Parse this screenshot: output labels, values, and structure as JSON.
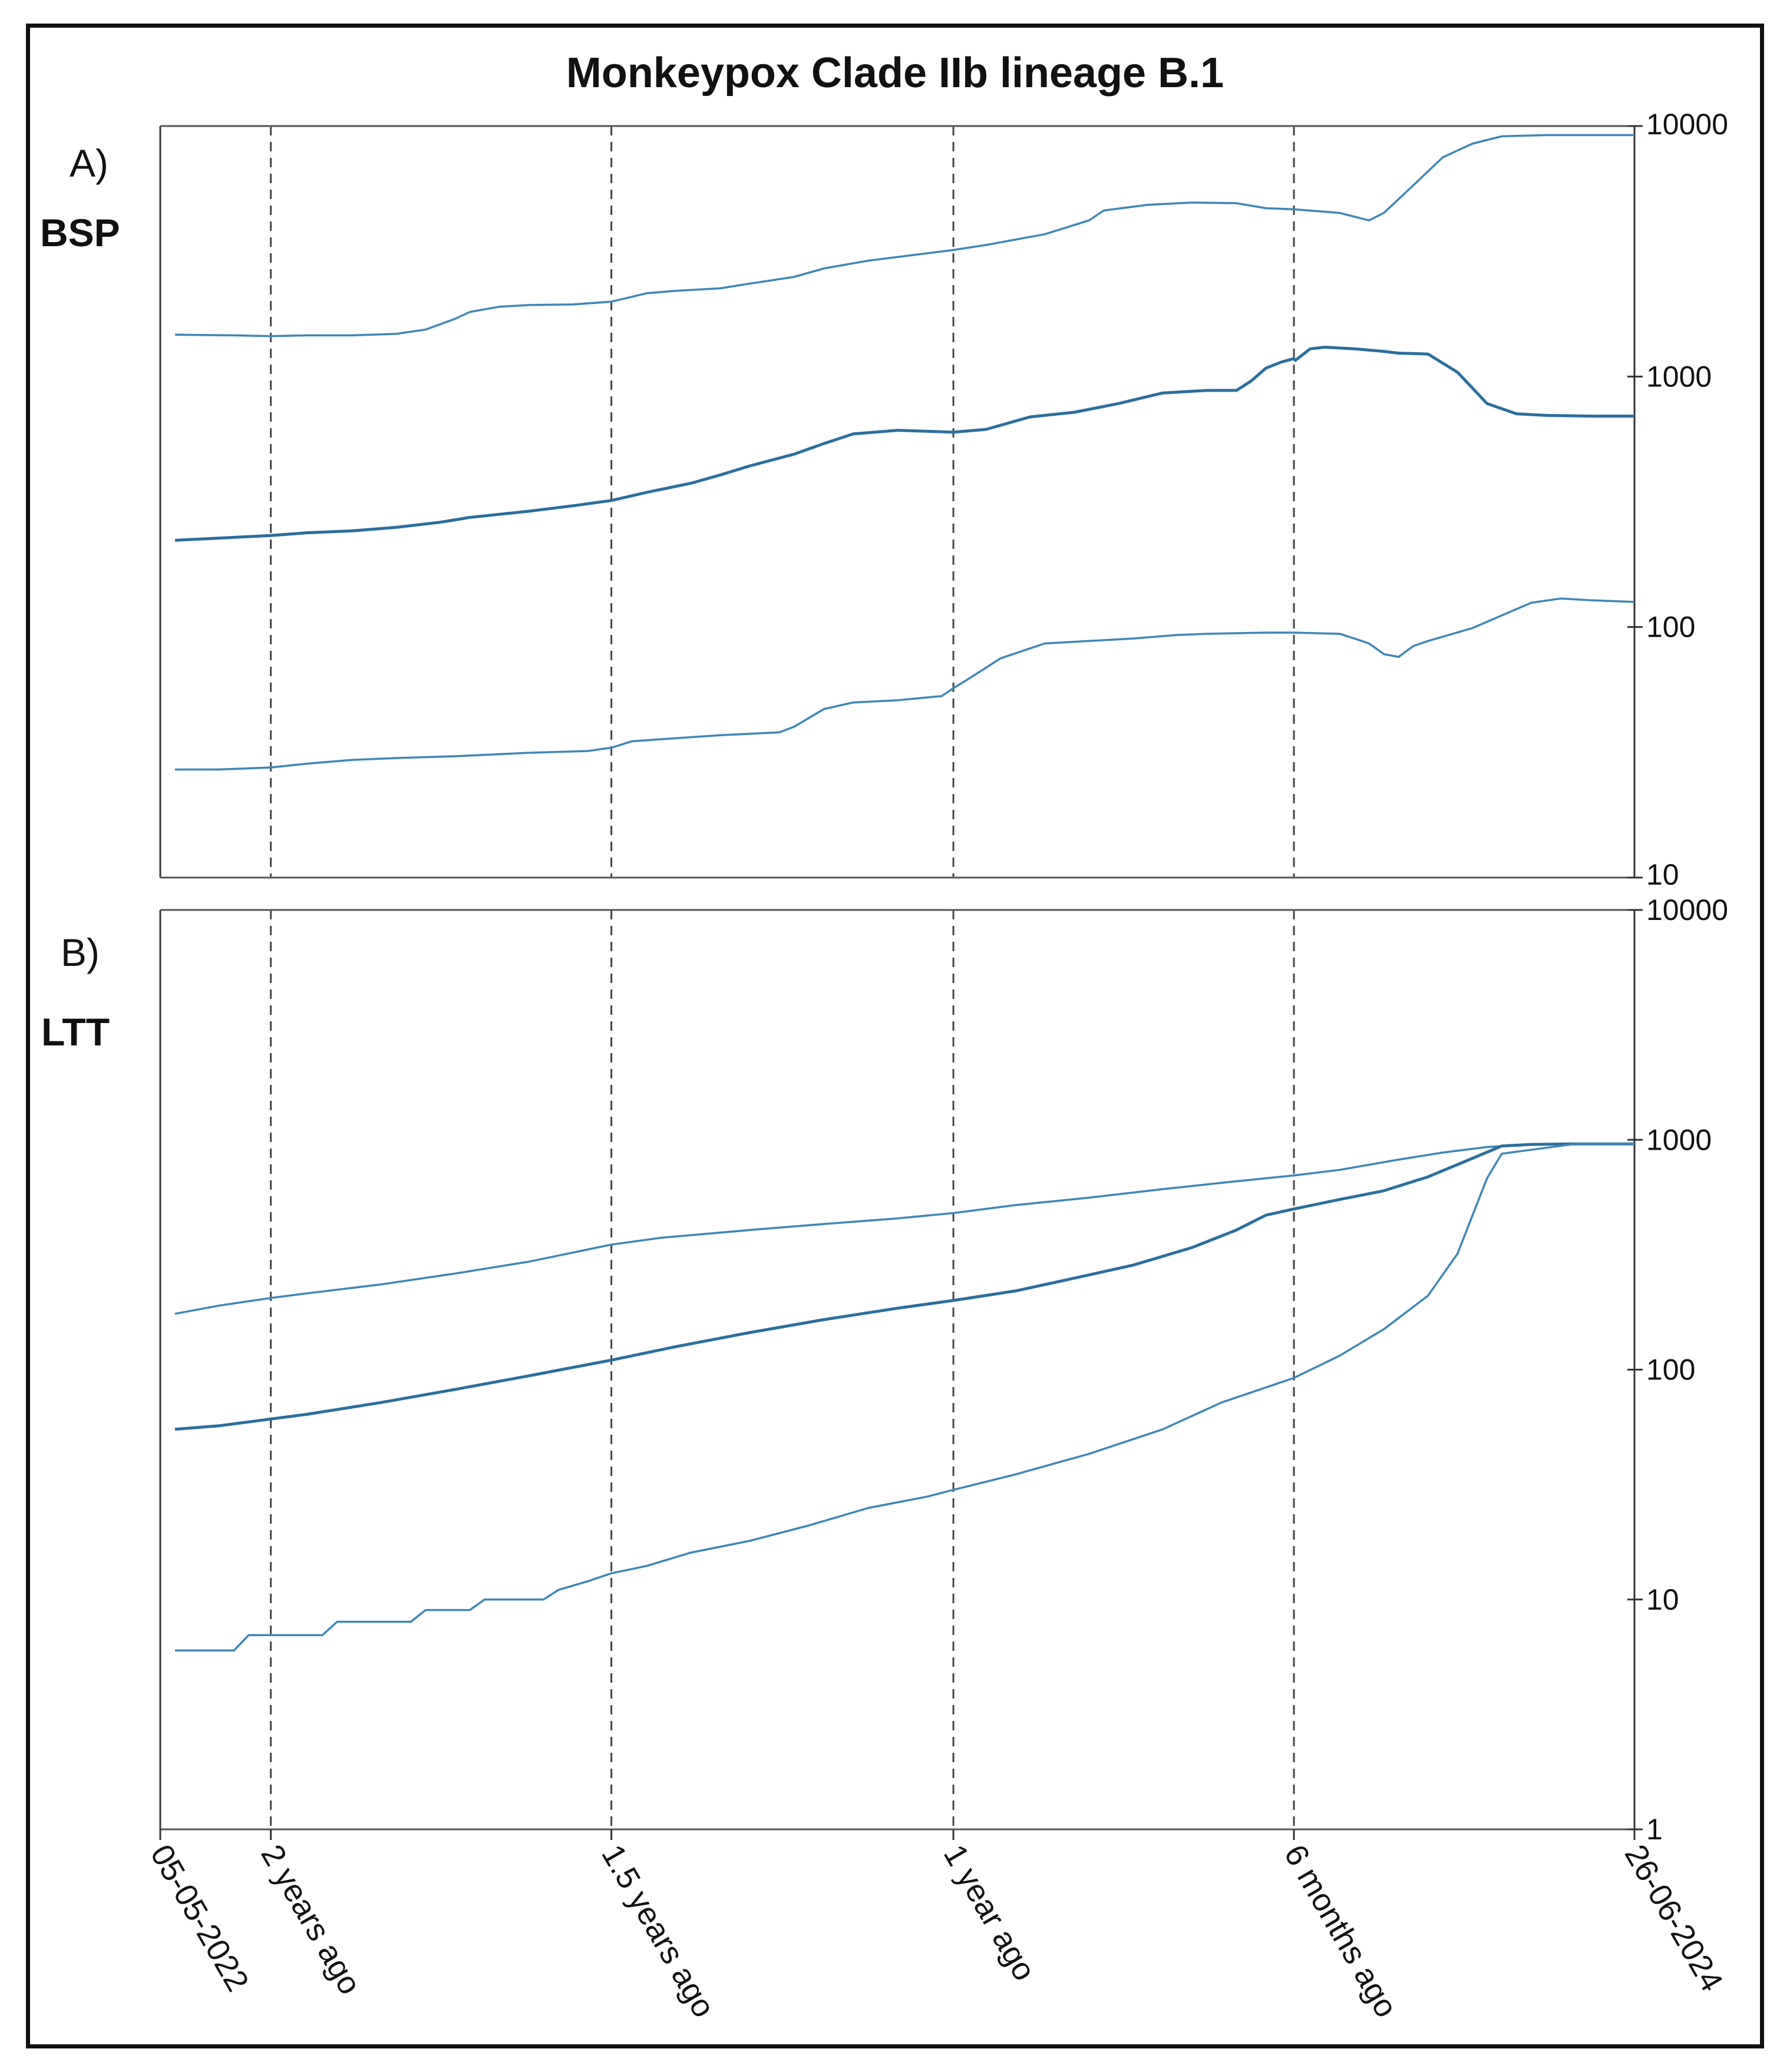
{
  "chart_data": [
    {
      "type": "line",
      "title": "Monkeypox Clade IIb lineage B.1",
      "panel_letter": "A)",
      "panel_name": "BSP",
      "xlabel": "",
      "ylabel": "",
      "yscale": "log",
      "ylim": [
        10,
        10000
      ],
      "yticks": [
        "10000",
        "1000",
        "100",
        "10"
      ],
      "ytick_values": [
        10000,
        1000,
        100,
        10
      ],
      "xlim": [
        0,
        1
      ],
      "xticks": [
        "05-05-2022",
        "2 years ago",
        "1.5 years ago",
        "1 year ago",
        "6 months ago",
        "26-06-2024"
      ],
      "xtick_values": [
        0,
        0.075,
        0.306,
        0.538,
        0.769,
        1.0
      ],
      "grid": "vertical dashed lines at x ticks",
      "colors": {
        "line": "#3d87b8",
        "line_dark": "#2a6f9e",
        "axis": "#333333"
      },
      "series": [
        {
          "values": [
            [
              0.01,
              1470
            ],
            [
              0.05,
              1460
            ],
            [
              0.075,
              1450
            ],
            [
              0.1,
              1460
            ],
            [
              0.13,
              1460
            ],
            [
              0.16,
              1480
            ],
            [
              0.18,
              1540
            ],
            [
              0.2,
              1700
            ],
            [
              0.21,
              1810
            ],
            [
              0.23,
              1900
            ],
            [
              0.25,
              1930
            ],
            [
              0.28,
              1940
            ],
            [
              0.306,
              1990
            ],
            [
              0.33,
              2150
            ],
            [
              0.35,
              2200
            ],
            [
              0.38,
              2250
            ],
            [
              0.4,
              2350
            ],
            [
              0.43,
              2500
            ],
            [
              0.45,
              2700
            ],
            [
              0.48,
              2900
            ],
            [
              0.5,
              3000
            ],
            [
              0.538,
              3200
            ],
            [
              0.56,
              3350
            ],
            [
              0.6,
              3700
            ],
            [
              0.63,
              4200
            ],
            [
              0.64,
              4600
            ],
            [
              0.67,
              4850
            ],
            [
              0.7,
              4950
            ],
            [
              0.73,
              4920
            ],
            [
              0.75,
              4700
            ],
            [
              0.769,
              4650
            ],
            [
              0.8,
              4500
            ],
            [
              0.82,
              4200
            ],
            [
              0.83,
              4500
            ],
            [
              0.85,
              5800
            ],
            [
              0.87,
              7500
            ],
            [
              0.89,
              8500
            ],
            [
              0.91,
              9100
            ],
            [
              0.94,
              9200
            ],
            [
              0.97,
              9200
            ],
            [
              1.0,
              9200
            ]
          ]
        },
        {
          "values": [
            [
              0.01,
              222
            ],
            [
              0.05,
              228
            ],
            [
              0.075,
              232
            ],
            [
              0.1,
              238
            ],
            [
              0.13,
              242
            ],
            [
              0.16,
              250
            ],
            [
              0.19,
              262
            ],
            [
              0.21,
              274
            ],
            [
              0.25,
              290
            ],
            [
              0.28,
              305
            ],
            [
              0.306,
              320
            ],
            [
              0.33,
              345
            ],
            [
              0.36,
              375
            ],
            [
              0.38,
              405
            ],
            [
              0.4,
              440
            ],
            [
              0.43,
              490
            ],
            [
              0.45,
              540
            ],
            [
              0.47,
              590
            ],
            [
              0.5,
              610
            ],
            [
              0.538,
              600
            ],
            [
              0.56,
              615
            ],
            [
              0.59,
              690
            ],
            [
              0.62,
              720
            ],
            [
              0.65,
              780
            ],
            [
              0.68,
              860
            ],
            [
              0.71,
              880
            ],
            [
              0.73,
              880
            ],
            [
              0.74,
              960
            ],
            [
              0.75,
              1080
            ],
            [
              0.76,
              1140
            ],
            [
              0.769,
              1180
            ],
            [
              0.77,
              1160
            ],
            [
              0.78,
              1290
            ],
            [
              0.79,
              1310
            ],
            [
              0.81,
              1290
            ],
            [
              0.83,
              1260
            ],
            [
              0.84,
              1240
            ],
            [
              0.86,
              1230
            ],
            [
              0.88,
              1040
            ],
            [
              0.9,
              780
            ],
            [
              0.92,
              710
            ],
            [
              0.94,
              700
            ],
            [
              0.97,
              695
            ],
            [
              1.0,
              695
            ]
          ]
        },
        {
          "values": [
            [
              0.01,
              27
            ],
            [
              0.04,
              27
            ],
            [
              0.075,
              27.5
            ],
            [
              0.1,
              28.5
            ],
            [
              0.13,
              29.5
            ],
            [
              0.16,
              30
            ],
            [
              0.2,
              30.5
            ],
            [
              0.25,
              31.5
            ],
            [
              0.29,
              32
            ],
            [
              0.306,
              33
            ],
            [
              0.32,
              35
            ],
            [
              0.35,
              36
            ],
            [
              0.38,
              37
            ],
            [
              0.42,
              38
            ],
            [
              0.43,
              40
            ],
            [
              0.45,
              47
            ],
            [
              0.47,
              50
            ],
            [
              0.5,
              51
            ],
            [
              0.53,
              53
            ],
            [
              0.538,
              57
            ],
            [
              0.55,
              63
            ],
            [
              0.57,
              75
            ],
            [
              0.6,
              86
            ],
            [
              0.63,
              88
            ],
            [
              0.66,
              90
            ],
            [
              0.69,
              93
            ],
            [
              0.71,
              94
            ],
            [
              0.75,
              95
            ],
            [
              0.769,
              95
            ],
            [
              0.8,
              94
            ],
            [
              0.81,
              90
            ],
            [
              0.82,
              86
            ],
            [
              0.83,
              78
            ],
            [
              0.84,
              76
            ],
            [
              0.85,
              84
            ],
            [
              0.86,
              88
            ],
            [
              0.89,
              99
            ],
            [
              0.93,
              125
            ],
            [
              0.95,
              130
            ],
            [
              0.97,
              128
            ],
            [
              1.0,
              126
            ]
          ]
        }
      ]
    },
    {
      "type": "line",
      "panel_letter": "B)",
      "panel_name": "LTT",
      "xlabel": "",
      "ylabel": "",
      "yscale": "log",
      "ylim": [
        1,
        10000
      ],
      "yticks": [
        "10000",
        "1000",
        "100",
        "10",
        "1"
      ],
      "ytick_values": [
        10000,
        1000,
        100,
        10,
        1
      ],
      "xlim": [
        0,
        1
      ],
      "grid": "vertical dashed lines at x ticks",
      "colors": {
        "line": "#3d87b8",
        "line_dark": "#2a6f9e",
        "axis": "#333333"
      },
      "series": [
        {
          "values": [
            [
              0.01,
              175
            ],
            [
              0.04,
              190
            ],
            [
              0.075,
              205
            ],
            [
              0.1,
              215
            ],
            [
              0.15,
              235
            ],
            [
              0.2,
              262
            ],
            [
              0.25,
              295
            ],
            [
              0.306,
              350
            ],
            [
              0.34,
              375
            ],
            [
              0.4,
              405
            ],
            [
              0.45,
              430
            ],
            [
              0.5,
              455
            ],
            [
              0.538,
              480
            ],
            [
              0.58,
              520
            ],
            [
              0.63,
              560
            ],
            [
              0.68,
              610
            ],
            [
              0.72,
              650
            ],
            [
              0.769,
              700
            ],
            [
              0.8,
              740
            ],
            [
              0.84,
              820
            ],
            [
              0.87,
              880
            ],
            [
              0.9,
              930
            ],
            [
              0.93,
              955
            ],
            [
              0.96,
              960
            ],
            [
              1.0,
              960
            ]
          ]
        },
        {
          "values": [
            [
              0.01,
              55
            ],
            [
              0.04,
              57
            ],
            [
              0.075,
              61
            ],
            [
              0.1,
              64
            ],
            [
              0.15,
              72
            ],
            [
              0.2,
              82
            ],
            [
              0.25,
              94
            ],
            [
              0.306,
              110
            ],
            [
              0.35,
              126
            ],
            [
              0.4,
              145
            ],
            [
              0.45,
              165
            ],
            [
              0.5,
              185
            ],
            [
              0.538,
              200
            ],
            [
              0.58,
              220
            ],
            [
              0.62,
              250
            ],
            [
              0.66,
              285
            ],
            [
              0.7,
              340
            ],
            [
              0.73,
              405
            ],
            [
              0.75,
              470
            ],
            [
              0.769,
              500
            ],
            [
              0.8,
              550
            ],
            [
              0.83,
              600
            ],
            [
              0.86,
              690
            ],
            [
              0.89,
              830
            ],
            [
              0.91,
              940
            ],
            [
              0.93,
              955
            ],
            [
              0.96,
              960
            ],
            [
              1.0,
              960
            ]
          ]
        },
        {
          "values": [
            [
              0.01,
              6
            ],
            [
              0.05,
              6
            ],
            [
              0.06,
              7
            ],
            [
              0.075,
              7
            ],
            [
              0.11,
              7
            ],
            [
              0.12,
              8
            ],
            [
              0.17,
              8
            ],
            [
              0.18,
              9
            ],
            [
              0.21,
              9
            ],
            [
              0.22,
              10
            ],
            [
              0.26,
              10
            ],
            [
              0.27,
              11
            ],
            [
              0.29,
              12
            ],
            [
              0.306,
              13
            ],
            [
              0.33,
              14
            ],
            [
              0.36,
              16
            ],
            [
              0.4,
              18
            ],
            [
              0.44,
              21
            ],
            [
              0.48,
              25
            ],
            [
              0.52,
              28
            ],
            [
              0.538,
              30
            ],
            [
              0.58,
              35
            ],
            [
              0.63,
              43
            ],
            [
              0.68,
              55
            ],
            [
              0.72,
              72
            ],
            [
              0.769,
              92
            ],
            [
              0.8,
              115
            ],
            [
              0.83,
              150
            ],
            [
              0.86,
              210
            ],
            [
              0.88,
              320
            ],
            [
              0.9,
              680
            ],
            [
              0.91,
              870
            ],
            [
              0.93,
              905
            ],
            [
              0.96,
              960
            ],
            [
              1.0,
              960
            ]
          ]
        }
      ]
    }
  ]
}
